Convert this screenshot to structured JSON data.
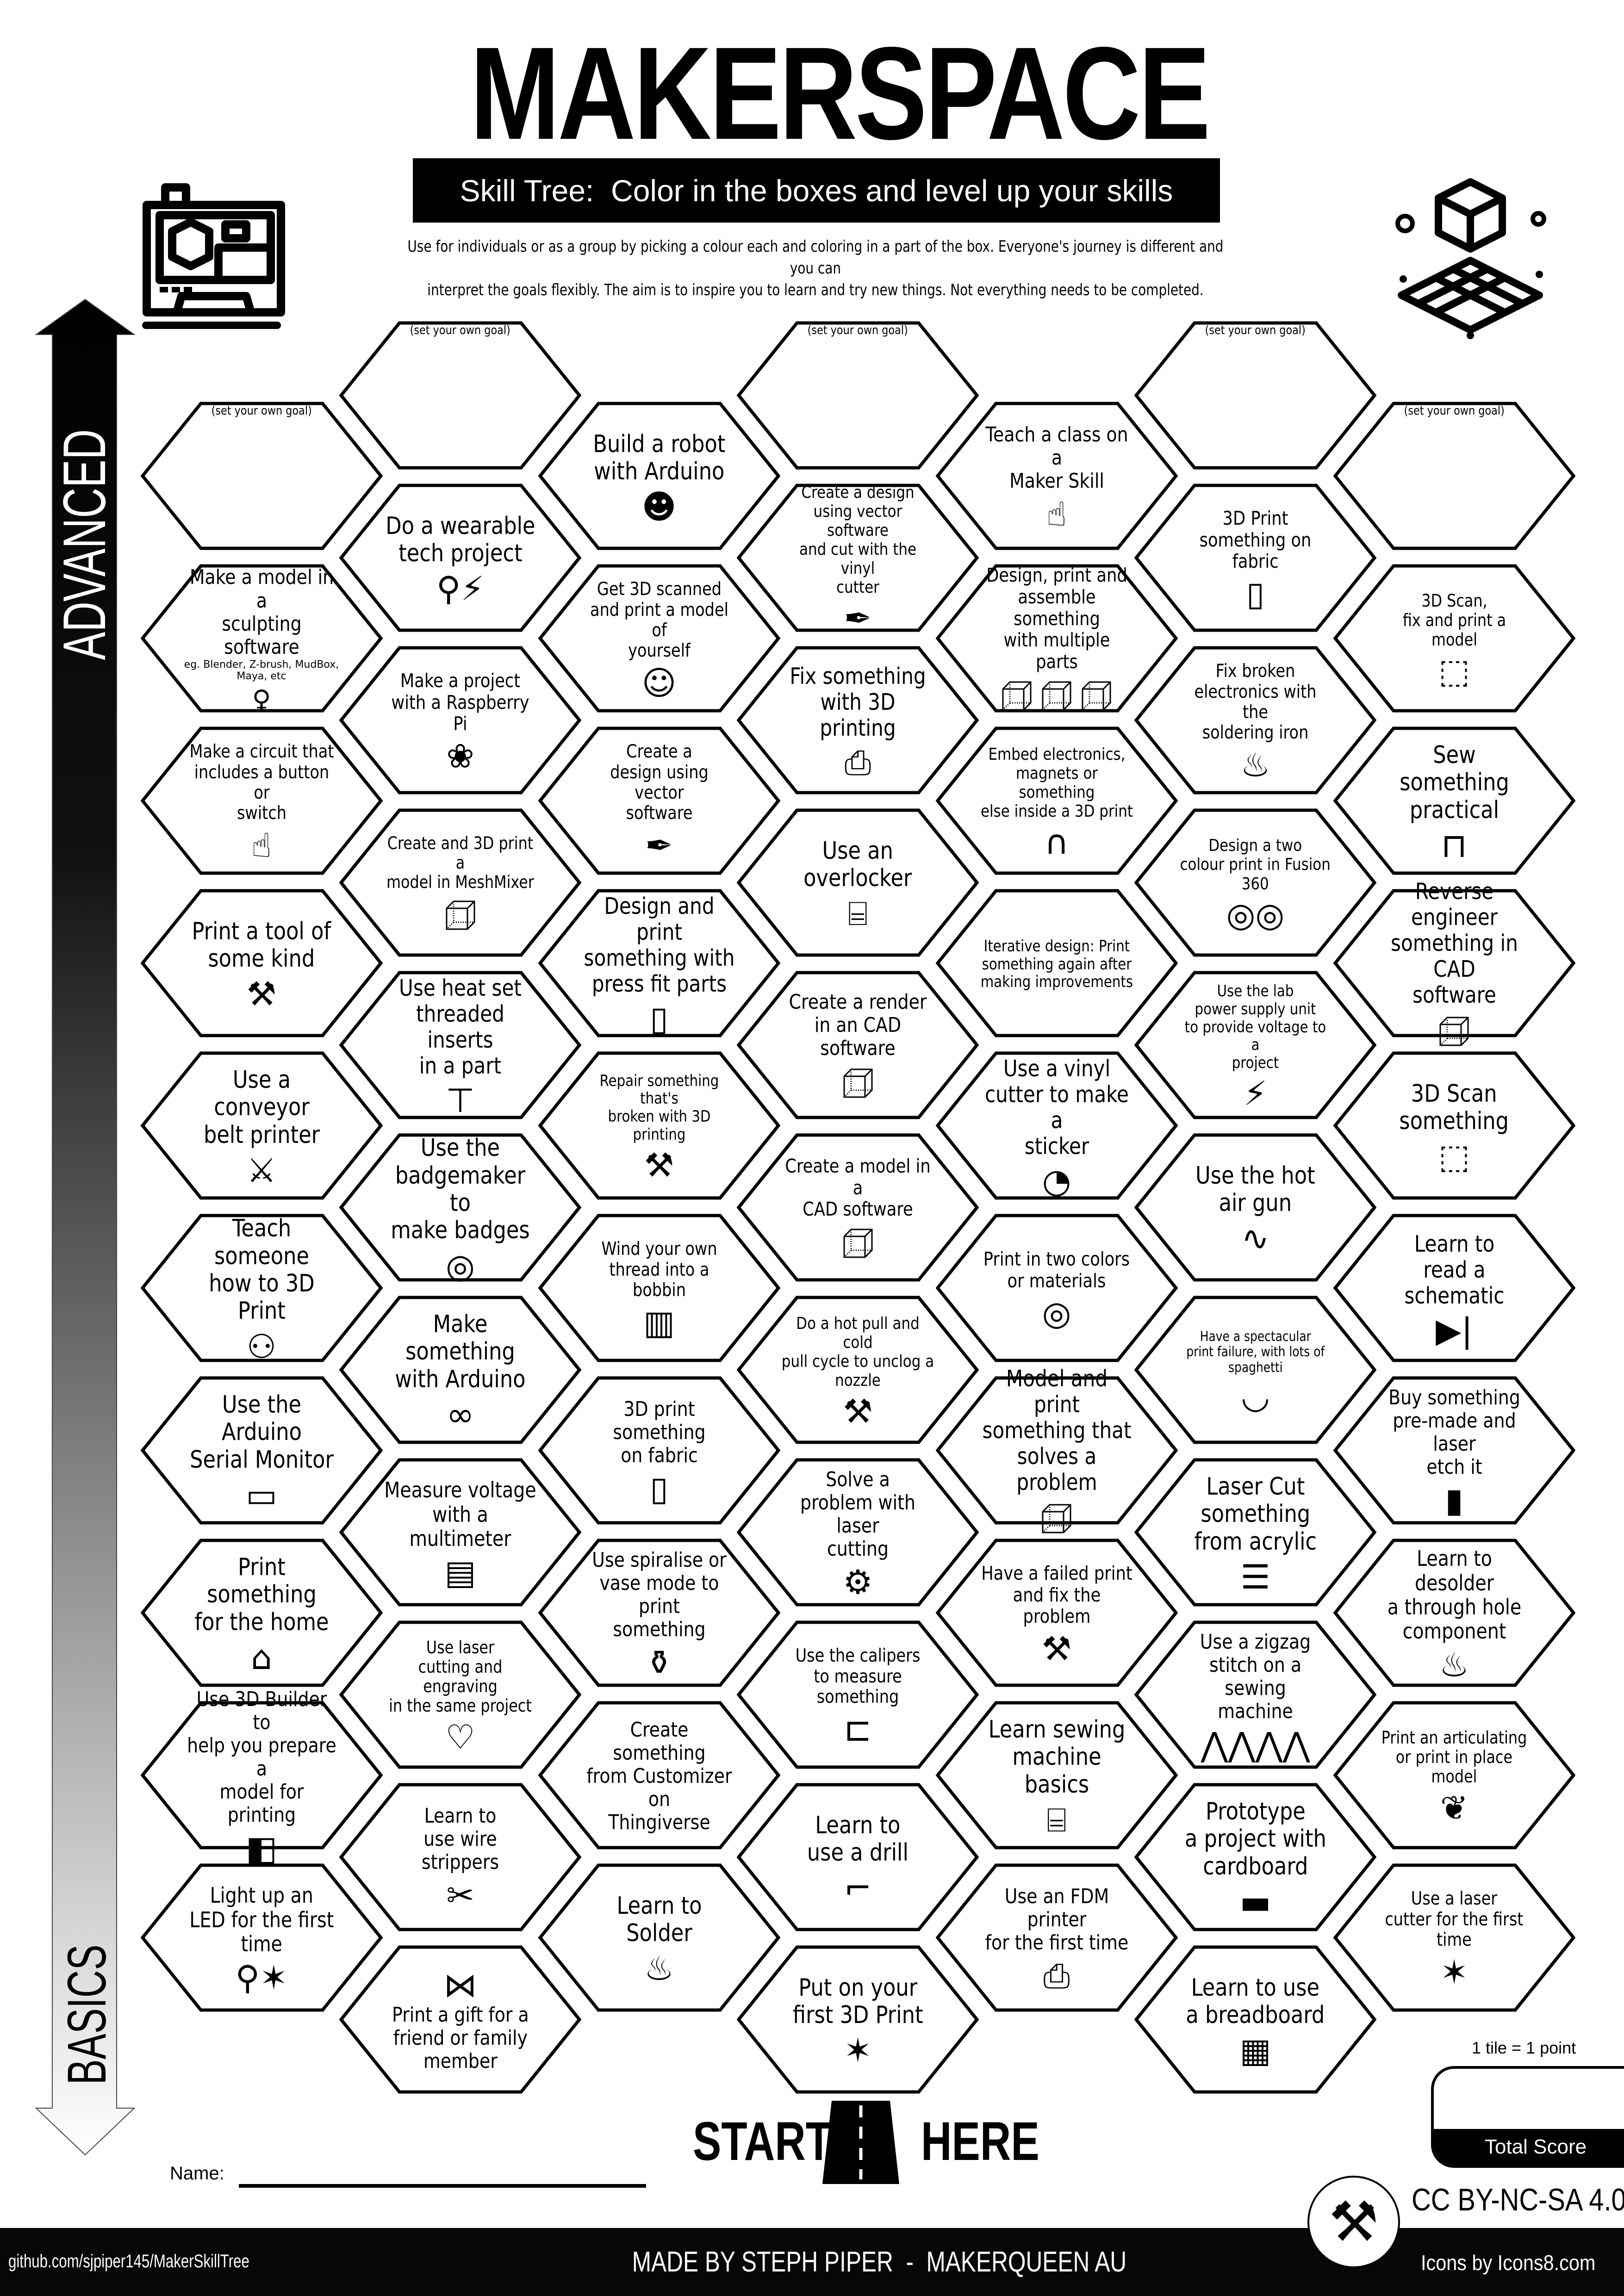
{
  "header": {
    "title": "MAKERSPACE",
    "subtitle": "Skill Tree:  Color in the boxes and level up your skills",
    "description": "Use for individuals or as a group by picking a colour each and coloring in a part of the box.  Everyone's journey is different and you can\ninterpret the goals flexibly.  The aim is to inspire you to learn and try new things. Not everything needs to be completed.",
    "left_icon": "3d-printer-icon",
    "right_icon": "cube-grid-icon"
  },
  "progression": {
    "top_label": "ADVANCED",
    "bottom_label": "BASICS"
  },
  "skill_tree": {
    "columns": [
      {
        "tiles": [
          {
            "text": "(set your own goal)",
            "goal": true
          },
          {
            "text": "Make a model in a\nsculpting software",
            "note": "eg. Blender, Z-brush, MudBox,\nMaya, etc",
            "icon": "statue"
          },
          {
            "text": "Make a circuit that\nincludes a button or\nswitch",
            "icon": "hand-pointer"
          },
          {
            "text": "Print a tool of\nsome kind",
            "icon": "tools"
          },
          {
            "text": "Use a conveyor\nbelt printer",
            "icon": "sword"
          },
          {
            "text": "Teach someone\nhow to 3D Print",
            "icon": "people-computer"
          },
          {
            "text": "Use the Arduino\nSerial Monitor",
            "icon": "terminal"
          },
          {
            "text": "Print something\nfor the home",
            "icon": "house"
          },
          {
            "text": "Use 3D Builder to\nhelp you prepare a\nmodel for printing",
            "icon": "3d-builder"
          },
          {
            "text": "Light up an\nLED for the first\ntime",
            "icon": "led-party"
          }
        ]
      },
      {
        "tiles": [
          {
            "text": "(set your own goal)",
            "goal": true
          },
          {
            "text": "Do a wearable\ntech project",
            "icon": "led-bolt"
          },
          {
            "text": "Make a project\nwith a Raspberry Pi",
            "icon": "raspberry-pi"
          },
          {
            "text": "Create and 3D print a\nmodel in MeshMixer",
            "icon": "cube"
          },
          {
            "text": "Use heat set\nthreaded inserts\nin a part",
            "icon": "screw"
          },
          {
            "text": "Use the\nbadgemaker to\nmake badges",
            "icon": "badge"
          },
          {
            "text": "Make something\nwith Arduino",
            "icon": "arduino"
          },
          {
            "text": "Measure voltage\nwith a multimeter",
            "icon": "multimeter"
          },
          {
            "text": "Use laser\ncutting and engraving\nin the same project",
            "icon": "laser-heart"
          },
          {
            "text": "Learn to\nuse wire strippers",
            "icon": "wire-stripper"
          },
          {
            "text": "Print a gift for a\nfriend or family\nmember",
            "icon": "bow"
          }
        ]
      },
      {
        "tiles": [
          {
            "text": "Build a robot\nwith Arduino",
            "icon": "robot"
          },
          {
            "text": "Get 3D scanned\nand print a model of\nyourself",
            "icon": "person"
          },
          {
            "text": "Create a\ndesign  using vector\nsoftware",
            "icon": "pen-tool"
          },
          {
            "text": "Design and print\nsomething with\npress fit parts",
            "icon": "cylinder"
          },
          {
            "text": "Repair something that's\nbroken with 3D printing",
            "icon": "tools"
          },
          {
            "text": "Wind your own\nthread into a bobbin",
            "icon": "spool"
          },
          {
            "text": "3D print something\non fabric",
            "icon": "fabric"
          },
          {
            "text": "Use spiralise or\nvase mode to print\nsomething",
            "icon": "vase"
          },
          {
            "text": "Create something\nfrom Customizer on\nThingiverse"
          },
          {
            "text": "Learn to Solder",
            "icon": "soldering-iron"
          }
        ]
      },
      {
        "tiles": [
          {
            "text": "(set your own goal)",
            "goal": true
          },
          {
            "text": "Create a  design\nusing vector software\nand cut with the vinyl\ncutter",
            "icon": "pen-tool"
          },
          {
            "text": "Fix something\nwith 3D printing",
            "icon": "3d-printer"
          },
          {
            "text": "Use an\noverlocker",
            "icon": "sewing-machine"
          },
          {
            "text": "Create a render\nin an CAD software",
            "icon": "cube"
          },
          {
            "text": "Create a model in a\nCAD software",
            "icon": "cube"
          },
          {
            "text": "Do a hot pull and cold\npull cycle to unclog a\nnozzle",
            "icon": "tools"
          },
          {
            "text": "Solve a\nproblem with laser\ncutting",
            "icon": "gear"
          },
          {
            "text": "Use the calipers\nto measure something",
            "icon": "calipers"
          },
          {
            "text": "Learn to\nuse a drill",
            "icon": "drill"
          },
          {
            "text": "Put on your\nfirst 3D Print",
            "icon": "party-popper"
          }
        ]
      },
      {
        "tiles": [
          {
            "text": "Teach a class on a\nMaker Skill",
            "icon": "teacher"
          },
          {
            "text": "Design, print and\nassemble something\nwith multiple parts",
            "icon": "three-cubes"
          },
          {
            "text": "Embed electronics,\nmagnets or something\nelse inside a 3D print",
            "icon": "magnet"
          },
          {
            "text": "Iterative design: Print\nsomething again after\nmaking improvements"
          },
          {
            "text": "Use a vinyl\ncutter to make a\nsticker",
            "icon": "sticker"
          },
          {
            "text": "Print in two colors\nor materials",
            "icon": "filament"
          },
          {
            "text": "Model and print\nsomething that\nsolves a problem",
            "icon": "cube"
          },
          {
            "text": "Have a failed print\nand fix the problem",
            "icon": "tools"
          },
          {
            "text": "Learn sewing\nmachine basics",
            "icon": "sewing-machine"
          },
          {
            "text": "Use an FDM printer\nfor the first time",
            "icon": "3d-printer"
          }
        ]
      },
      {
        "tiles": [
          {
            "text": "(set your own goal)",
            "goal": true
          },
          {
            "text": "3D Print\nsomething on fabric",
            "icon": "fabric"
          },
          {
            "text": "Fix broken\nelectronics with the\nsoldering iron",
            "icon": "soldering-iron"
          },
          {
            "text": "Design a two\ncolour print in Fusion\n360",
            "icon": "two-filaments"
          },
          {
            "text": "Use the lab\npower supply unit\nto provide voltage to a\nproject",
            "icon": "bolt"
          },
          {
            "text": "Use the hot\nair gun",
            "icon": "hot-air-gun"
          },
          {
            "text": "Have a spectacular\nprint failure, with lots of\nspaghetti",
            "icon": "spaghetti"
          },
          {
            "text": "Laser Cut\nsomething\nfrom acrylic",
            "icon": "layers"
          },
          {
            "text": "Use a zigzag\nstitch on a sewing\nmachine",
            "icon": "zigzag"
          },
          {
            "text": "Prototype\na project with\ncardboard",
            "icon": "cardboard"
          },
          {
            "text": "Learn to use\na breadboard",
            "icon": "breadboard"
          }
        ]
      },
      {
        "tiles": [
          {
            "text": "(set your own goal)",
            "goal": true
          },
          {
            "text": "3D Scan,\nfix and print a model",
            "icon": "3d-scan"
          },
          {
            "text": "Sew something\npractical",
            "icon": "bag"
          },
          {
            "text": "Reverse engineer\nsomething in CAD\nsoftware",
            "icon": "cube"
          },
          {
            "text": "3D Scan\nsomething",
            "icon": "3d-scan"
          },
          {
            "text": "Learn to\nread a schematic",
            "icon": "diode"
          },
          {
            "text": "Buy something\npre-made and laser\netch it",
            "icon": "etch"
          },
          {
            "text": "Learn to desolder\na through hole\ncomponent",
            "icon": "soldering-iron"
          },
          {
            "text": "Print an articulating\nor print in place\nmodel",
            "icon": "dragon"
          },
          {
            "text": "Use a laser\ncutter for the first\ntime",
            "icon": "party-popper"
          }
        ]
      }
    ]
  },
  "start": {
    "left": "START",
    "right": "HERE",
    "icon": "road-icon"
  },
  "name": {
    "label": "Name:",
    "value": ""
  },
  "score": {
    "rule": "1 tile = 1 point",
    "label": "Total Score",
    "value": ""
  },
  "footer": {
    "license": "CC BY-NC-SA 4.0",
    "github": "github.com/sjpiper145/MakerSkillTree",
    "made_by": "MADE BY STEPH PIPER  -  MAKERQUEEN AU",
    "icons_credit": "Icons by Icons8.com",
    "logo_icon": "tools-badge-icon"
  }
}
